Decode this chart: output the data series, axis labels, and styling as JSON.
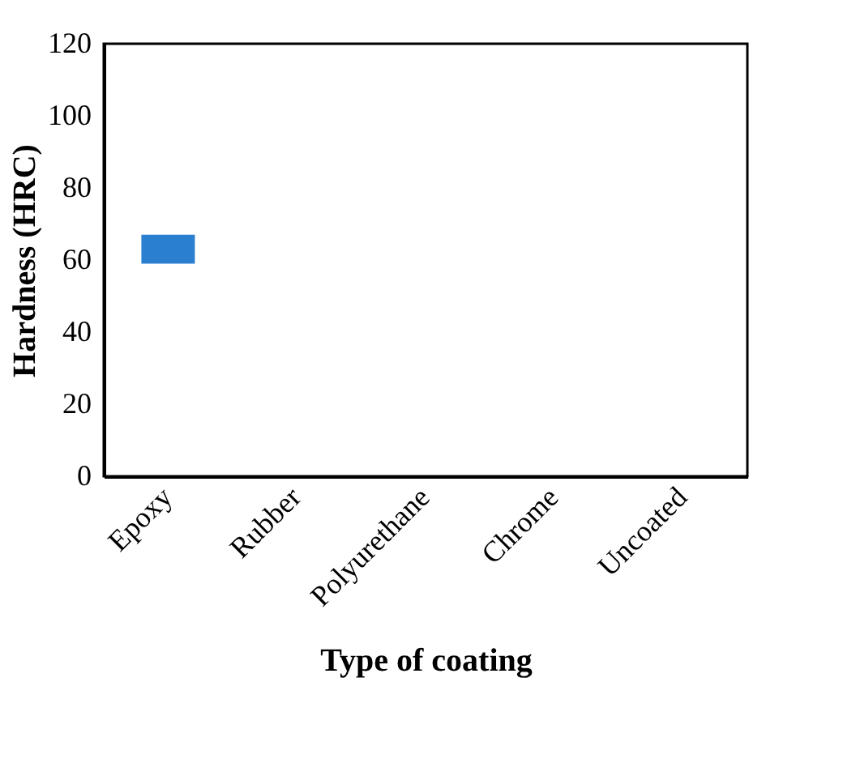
{
  "chart_data": {
    "type": "bar",
    "xlabel": "Type of coating",
    "ylabel": "Hardness (HRC)",
    "categories": [
      "Epoxy",
      "Rubber",
      "Polyurethane",
      "Chrome",
      "Uncoated"
    ],
    "series": [
      {
        "color": "#2a7fd0",
        "values": [
          8,
          null,
          null,
          null,
          null
        ],
        "base": [
          59,
          null,
          null,
          null,
          null
        ]
      }
    ],
    "ylim": [
      0,
      120
    ],
    "yticks": [
      0,
      20,
      40,
      60,
      80,
      100,
      120
    ],
    "grid": false,
    "legend": false
  }
}
